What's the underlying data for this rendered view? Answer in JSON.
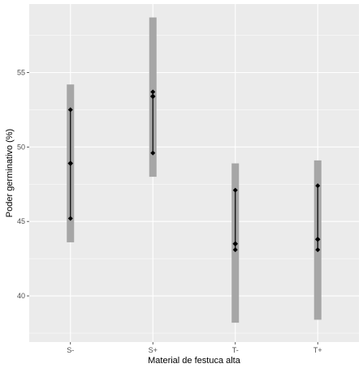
{
  "chart_data": {
    "type": "errorbar",
    "xlabel": "Material de festuca alta",
    "ylabel": "Poder germinativo (%)",
    "categories": [
      "S-",
      "S+",
      "T-",
      "T+"
    ],
    "ylim": [
      36.9,
      59.6
    ],
    "yticks": [
      40,
      45,
      50,
      55
    ],
    "grid": true,
    "background": "#ebebeb",
    "series": [
      {
        "mean": [
          48.9,
          53.4,
          43.5,
          43.8
        ],
        "ci_low": [
          45.2,
          49.6,
          43.1,
          43.1
        ],
        "ci_high": [
          52.5,
          53.7,
          47.1,
          47.4
        ],
        "range_low": [
          43.6,
          48.0,
          38.2,
          38.4
        ],
        "range_high": [
          54.2,
          58.7,
          48.9,
          49.1
        ]
      }
    ],
    "colors": {
      "range_bar": "#a6a6a6",
      "point": "#000000",
      "panel": "#ebebeb",
      "grid": "#ffffff"
    }
  }
}
